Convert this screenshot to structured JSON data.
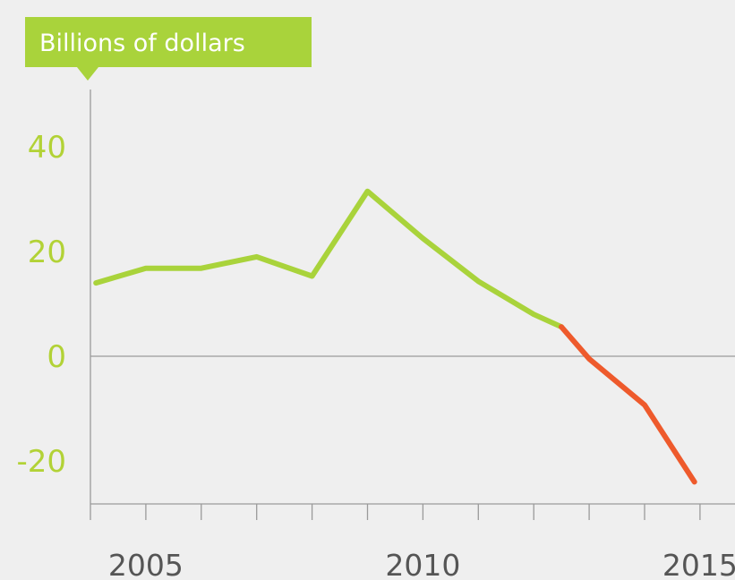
{
  "colors": {
    "background": "#efefef",
    "accent_green": "#a9d33b",
    "projection_red": "#ee5a2c",
    "axis_gray": "#9a9a9a",
    "tick_label_green": "#b2d236",
    "tick_label_dark": "#555555"
  },
  "chart_data": {
    "type": "line",
    "title": "",
    "ylabel": "Billions of dollars",
    "xlabel": "",
    "xlim": [
      2004,
      2015
    ],
    "ylim": [
      -28,
      50
    ],
    "y_ticks": [
      {
        "value": 40,
        "label": "40"
      },
      {
        "value": 20,
        "label": "20"
      },
      {
        "value": 0,
        "label": "0"
      },
      {
        "value": -20,
        "label": "-20"
      }
    ],
    "x_ticks": [
      2004,
      2005,
      2006,
      2007,
      2008,
      2009,
      2010,
      2011,
      2012,
      2013,
      2014,
      2015
    ],
    "x_tick_labels": [
      {
        "value": 2005,
        "label": "2005"
      },
      {
        "value": 2010,
        "label": "2010"
      },
      {
        "value": 2015,
        "label": "2015"
      }
    ],
    "grid": false,
    "zero_line": true,
    "series": [
      {
        "style": "actual",
        "color": "#a9d33b",
        "points": [
          [
            2004.1,
            14.0
          ],
          [
            2005.0,
            16.8
          ],
          [
            2006.0,
            16.8
          ],
          [
            2007.0,
            19.0
          ],
          [
            2008.0,
            15.3
          ],
          [
            2009.0,
            31.5
          ],
          [
            2010.0,
            22.5
          ],
          [
            2011.0,
            14.3
          ],
          [
            2012.0,
            8.0
          ],
          [
            2012.5,
            5.6
          ]
        ]
      },
      {
        "style": "projected",
        "color": "#ee5a2c",
        "points": [
          [
            2012.5,
            5.6
          ],
          [
            2013.0,
            -0.5
          ],
          [
            2014.0,
            -9.3
          ],
          [
            2014.9,
            -24.0
          ]
        ]
      }
    ]
  }
}
